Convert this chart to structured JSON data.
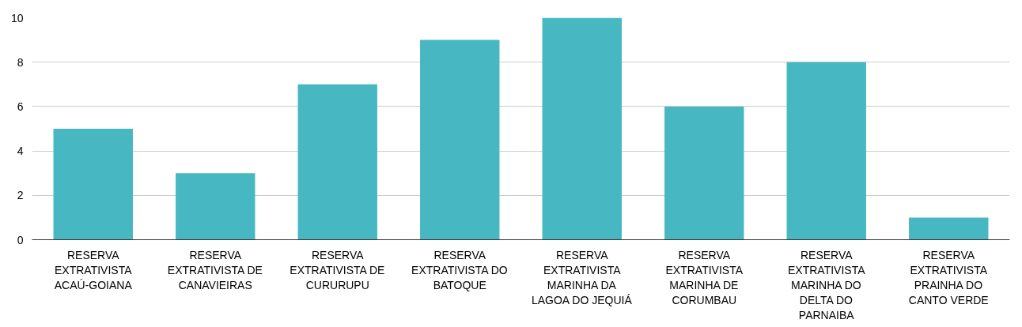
{
  "chart_data": {
    "type": "bar",
    "categories": [
      "RESERVA EXTRATIVISTA ACAÚ-GOIANA",
      "RESERVA EXTRATIVISTA DE CANAVIEIRAS",
      "RESERVA EXTRATIVISTA DE CURURUPU",
      "RESERVA EXTRATIVISTA DO BATOQUE",
      "RESERVA EXTRATIVISTA MARINHA DA LAGOA DO JEQUIÁ",
      "RESERVA EXTRATIVISTA MARINHA DE CORUMBAU",
      "RESERVA EXTRATIVISTA MARINHA DO DELTA DO PARNAIBA",
      "RESERVA EXTRATIVISTA PRAINHA DO CANTO VERDE"
    ],
    "values": [
      5,
      3,
      7,
      9,
      10,
      6,
      8,
      1
    ],
    "color": "#47b8c2",
    "ylim": [
      0,
      10
    ],
    "yticks": [
      0,
      2,
      4,
      6,
      8,
      10
    ],
    "grid": "y"
  }
}
